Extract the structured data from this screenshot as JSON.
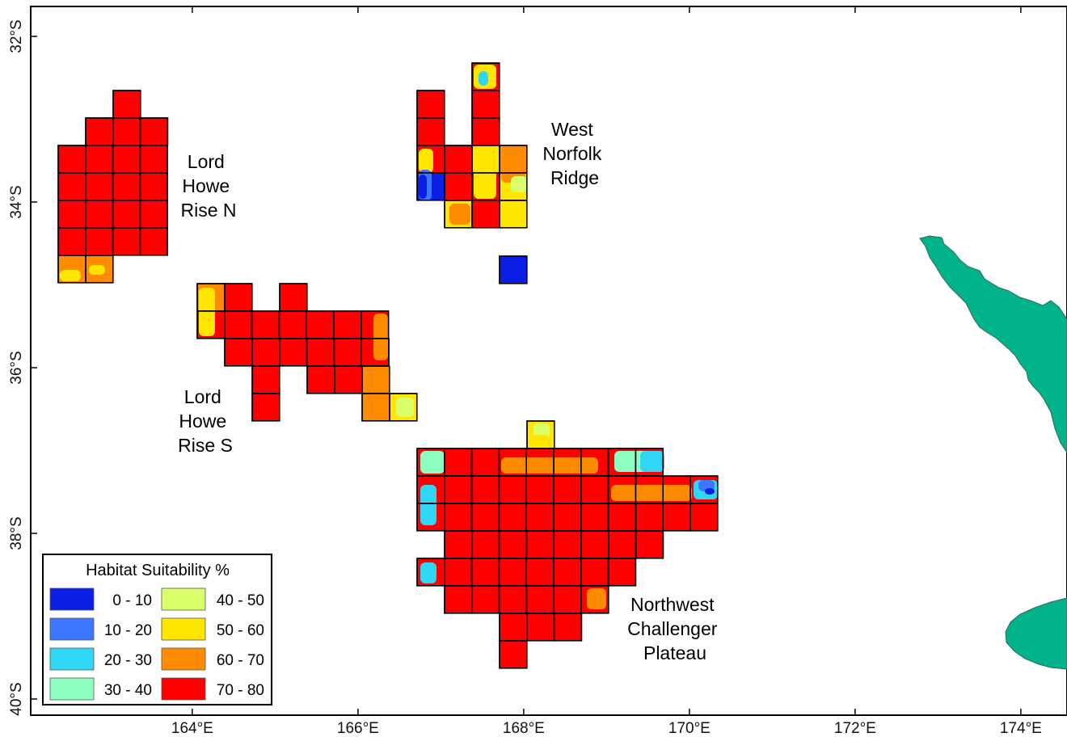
{
  "map": {
    "x_axis": {
      "ticks": [
        {
          "value": 164,
          "label": "164°E"
        },
        {
          "value": 166,
          "label": "166°E"
        },
        {
          "value": 168,
          "label": "168°E"
        },
        {
          "value": 170,
          "label": "170°E"
        },
        {
          "value": 172,
          "label": "172°E"
        },
        {
          "value": 174,
          "label": "174°E"
        }
      ]
    },
    "y_axis": {
      "ticks": [
        {
          "value": -32,
          "label": "32°S"
        },
        {
          "value": -34,
          "label": "34°S"
        },
        {
          "value": -36,
          "label": "36°S"
        },
        {
          "value": -38,
          "label": "38°S"
        },
        {
          "value": -40,
          "label": "40°S"
        }
      ]
    },
    "regions": [
      {
        "id": "lord-howe-rise-n",
        "lines": [
          "Lord",
          "Howe",
          "Rise N"
        ]
      },
      {
        "id": "west-norfolk-ridge",
        "lines": [
          "West",
          "Norfolk",
          "Ridge"
        ]
      },
      {
        "id": "lord-howe-rise-s",
        "lines": [
          "Lord",
          "Howe",
          "Rise S"
        ]
      },
      {
        "id": "northwest-challenger-plateau",
        "lines": [
          "Northwest",
          "Challenger",
          "Plateau"
        ]
      }
    ],
    "land_color": "#00b38a",
    "grid_cell_size_deg": 0.333
  },
  "legend": {
    "title": "Habitat Suitability %",
    "items": [
      {
        "label": "0 - 10",
        "color": "#0a1ee6"
      },
      {
        "label": "10 - 20",
        "color": "#3b78ff"
      },
      {
        "label": "20 - 30",
        "color": "#2fd6f5"
      },
      {
        "label": "30 - 40",
        "color": "#8dffc0"
      },
      {
        "label": "40 - 50",
        "color": "#d8ff6a"
      },
      {
        "label": "50 - 60",
        "color": "#ffe600"
      },
      {
        "label": "60 - 70",
        "color": "#ff8c00"
      },
      {
        "label": "70 - 80",
        "color": "#ff0000"
      }
    ]
  }
}
